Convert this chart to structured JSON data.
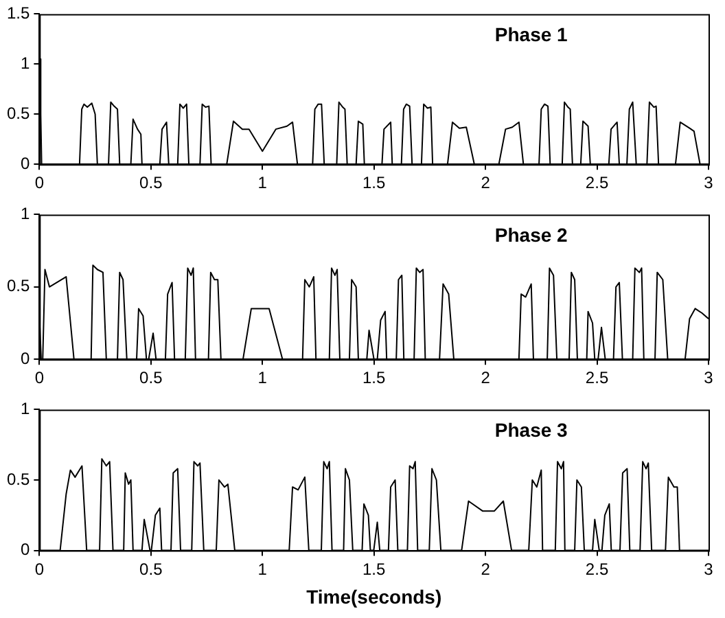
{
  "chart_data": [
    {
      "type": "line",
      "color": "#000000",
      "marker": "none",
      "grid": false,
      "legend": false,
      "annotations": [
        "Phase 1"
      ],
      "xlim": [
        0,
        3
      ],
      "xticks": [
        0,
        0.5,
        1,
        1.5,
        2,
        2.5,
        3
      ],
      "ylim": [
        0,
        1.5
      ],
      "yticks": [
        0,
        0.5,
        1,
        1.5
      ],
      "x": [
        0,
        0.003,
        0.006,
        0.01,
        0.18,
        0.19,
        0.2,
        0.215,
        0.235,
        0.25,
        0.26,
        0.31,
        0.32,
        0.335,
        0.35,
        0.36,
        0.41,
        0.42,
        0.44,
        0.455,
        0.46,
        0.54,
        0.55,
        0.57,
        0.58,
        0.62,
        0.63,
        0.645,
        0.66,
        0.67,
        0.72,
        0.73,
        0.745,
        0.76,
        0.77,
        0.84,
        0.87,
        0.91,
        0.94,
        1.0,
        1.06,
        1.11,
        1.135,
        1.157,
        1.225,
        1.235,
        1.25,
        1.265,
        1.277,
        1.333,
        1.343,
        1.36,
        1.37,
        1.38,
        1.42,
        1.43,
        1.45,
        1.457,
        1.536,
        1.545,
        1.575,
        1.582,
        1.623,
        1.633,
        1.645,
        1.66,
        1.671,
        1.713,
        1.723,
        1.74,
        1.755,
        1.763,
        1.83,
        1.852,
        1.883,
        1.914,
        1.95,
        2.06,
        2.09,
        2.12,
        2.15,
        2.17,
        2.24,
        2.25,
        2.265,
        2.28,
        2.29,
        2.344,
        2.354,
        2.37,
        2.38,
        2.39,
        2.427,
        2.437,
        2.46,
        2.47,
        2.553,
        2.563,
        2.59,
        2.6,
        2.634,
        2.645,
        2.66,
        2.676,
        2.724,
        2.735,
        2.755,
        2.765,
        2.776,
        2.852,
        2.873,
        2.915,
        2.935,
        2.962,
        3
      ],
      "values": [
        0,
        1.05,
        0.5,
        0,
        0,
        0.55,
        0.6,
        0.57,
        0.61,
        0.5,
        0,
        0,
        0.62,
        0.58,
        0.55,
        0,
        0,
        0.45,
        0.35,
        0.3,
        0,
        0,
        0.35,
        0.42,
        0,
        0,
        0.6,
        0.56,
        0.6,
        0,
        0,
        0.6,
        0.57,
        0.58,
        0,
        0,
        0.43,
        0.35,
        0.35,
        0.13,
        0.35,
        0.38,
        0.42,
        0,
        0,
        0.55,
        0.6,
        0.6,
        0,
        0,
        0.62,
        0.57,
        0.55,
        0,
        0,
        0.43,
        0.4,
        0,
        0,
        0.35,
        0.42,
        0,
        0,
        0.55,
        0.6,
        0.58,
        0,
        0,
        0.6,
        0.56,
        0.57,
        0,
        0,
        0.42,
        0.36,
        0.37,
        0,
        0,
        0.35,
        0.37,
        0.42,
        0,
        0,
        0.55,
        0.6,
        0.58,
        0,
        0,
        0.62,
        0.57,
        0.55,
        0,
        0,
        0.43,
        0.38,
        0,
        0,
        0.35,
        0.42,
        0,
        0,
        0.55,
        0.62,
        0,
        0,
        0.62,
        0.57,
        0.58,
        0,
        0,
        0.42,
        0.36,
        0.33,
        0,
        0
      ]
    },
    {
      "type": "line",
      "color": "#000000",
      "marker": "none",
      "grid": false,
      "legend": false,
      "annotations": [
        "Phase 2"
      ],
      "xlim": [
        0,
        3
      ],
      "xticks": [
        0,
        0.5,
        1,
        1.5,
        2,
        2.5,
        3
      ],
      "ylim": [
        0,
        1
      ],
      "yticks": [
        0,
        0.5,
        1
      ],
      "x": [
        0,
        0.008,
        0.015,
        0.025,
        0.045,
        0.12,
        0.155,
        0.232,
        0.24,
        0.26,
        0.285,
        0.3,
        0.35,
        0.36,
        0.375,
        0.392,
        0.436,
        0.445,
        0.465,
        0.48,
        0.49,
        0.51,
        0.523,
        0.565,
        0.575,
        0.595,
        0.606,
        0.654,
        0.665,
        0.68,
        0.69,
        0.7,
        0.758,
        0.768,
        0.785,
        0.8,
        0.814,
        0.913,
        0.95,
        1.03,
        1.09,
        1.18,
        1.19,
        1.21,
        1.23,
        1.24,
        1.3,
        1.31,
        1.325,
        1.335,
        1.347,
        1.39,
        1.4,
        1.42,
        1.43,
        1.468,
        1.478,
        1.5,
        1.515,
        1.53,
        1.55,
        1.557,
        1.6,
        1.61,
        1.625,
        1.634,
        1.68,
        1.69,
        1.705,
        1.72,
        1.73,
        1.794,
        1.81,
        1.835,
        1.858,
        2.15,
        2.16,
        2.18,
        2.205,
        2.215,
        2.277,
        2.287,
        2.305,
        2.32,
        2.375,
        2.385,
        2.4,
        2.412,
        2.454,
        2.46,
        2.48,
        2.49,
        2.505,
        2.52,
        2.537,
        2.574,
        2.585,
        2.6,
        2.614,
        2.66,
        2.67,
        2.69,
        2.7,
        2.71,
        2.76,
        2.77,
        2.795,
        2.817,
        2.895,
        2.915,
        2.94,
        2.97,
        3
      ],
      "values": [
        0.3,
        0,
        0,
        0.62,
        0.5,
        0.57,
        0,
        0,
        0.65,
        0.62,
        0.6,
        0,
        0,
        0.6,
        0.55,
        0,
        0,
        0.35,
        0.3,
        0,
        0,
        0.18,
        0,
        0,
        0.45,
        0.53,
        0,
        0,
        0.63,
        0.58,
        0.63,
        0,
        0,
        0.6,
        0.55,
        0.55,
        0,
        0,
        0.35,
        0.35,
        0,
        0,
        0.55,
        0.5,
        0.57,
        0,
        0,
        0.63,
        0.58,
        0.62,
        0,
        0,
        0.55,
        0.5,
        0,
        0,
        0.2,
        0,
        0,
        0.27,
        0.33,
        0,
        0,
        0.55,
        0.58,
        0,
        0,
        0.63,
        0.6,
        0.62,
        0,
        0,
        0.52,
        0.45,
        0,
        0,
        0.45,
        0.43,
        0.52,
        0,
        0,
        0.63,
        0.58,
        0,
        0,
        0.6,
        0.55,
        0,
        0,
        0.33,
        0.25,
        0,
        0,
        0.22,
        0,
        0,
        0.5,
        0.53,
        0,
        0,
        0.63,
        0.6,
        0.63,
        0,
        0,
        0.6,
        0.55,
        0,
        0,
        0.28,
        0.35,
        0.32,
        0.28
      ]
    },
    {
      "type": "line",
      "color": "#000000",
      "marker": "none",
      "grid": false,
      "legend": false,
      "annotations": [
        "Phase 3"
      ],
      "xlabel": "Time(seconds)",
      "xlim": [
        0,
        3
      ],
      "xticks": [
        0,
        0.5,
        1,
        1.5,
        2,
        2.5,
        3
      ],
      "ylim": [
        0,
        1
      ],
      "yticks": [
        0,
        0.5,
        1
      ],
      "x": [
        0,
        0.093,
        0.12,
        0.139,
        0.16,
        0.191,
        0.212,
        0.27,
        0.28,
        0.3,
        0.315,
        0.33,
        0.378,
        0.385,
        0.4,
        0.41,
        0.42,
        0.46,
        0.47,
        0.496,
        0.502,
        0.52,
        0.54,
        0.548,
        0.59,
        0.6,
        0.62,
        0.633,
        0.683,
        0.693,
        0.71,
        0.72,
        0.737,
        0.793,
        0.805,
        0.83,
        0.845,
        0.876,
        1.12,
        1.135,
        1.16,
        1.19,
        1.208,
        1.264,
        1.275,
        1.29,
        1.3,
        1.312,
        1.364,
        1.372,
        1.39,
        1.405,
        1.447,
        1.455,
        1.475,
        1.484,
        1.499,
        1.515,
        1.526,
        1.565,
        1.575,
        1.595,
        1.607,
        1.65,
        1.66,
        1.675,
        1.685,
        1.696,
        1.748,
        1.76,
        1.78,
        1.8,
        1.893,
        1.924,
        1.987,
        2.04,
        2.08,
        2.117,
        2.194,
        2.21,
        2.23,
        2.25,
        2.256,
        2.313,
        2.323,
        2.34,
        2.35,
        2.356,
        2.4,
        2.41,
        2.43,
        2.443,
        2.48,
        2.49,
        2.51,
        2.522,
        2.535,
        2.555,
        2.564,
        2.603,
        2.615,
        2.635,
        2.647,
        2.693,
        2.705,
        2.72,
        2.73,
        2.745,
        2.807,
        2.82,
        2.845,
        2.86,
        2.87,
        3
      ],
      "values": [
        0,
        0,
        0.4,
        0.57,
        0.52,
        0.6,
        0,
        0,
        0.65,
        0.6,
        0.63,
        0,
        0,
        0.55,
        0.47,
        0.5,
        0,
        0,
        0.22,
        0,
        0,
        0.25,
        0.3,
        0,
        0,
        0.55,
        0.58,
        0,
        0,
        0.63,
        0.6,
        0.62,
        0,
        0,
        0.5,
        0.45,
        0.47,
        0,
        0,
        0.45,
        0.43,
        0.52,
        0,
        0,
        0.63,
        0.58,
        0.63,
        0,
        0,
        0.58,
        0.5,
        0,
        0,
        0.33,
        0.25,
        0,
        0,
        0.2,
        0,
        0,
        0.45,
        0.5,
        0,
        0,
        0.6,
        0.58,
        0.63,
        0,
        0,
        0.58,
        0.5,
        0,
        0,
        0.35,
        0.28,
        0.28,
        0.35,
        0,
        0,
        0.5,
        0.45,
        0.57,
        0,
        0,
        0.63,
        0.58,
        0.63,
        0,
        0,
        0.5,
        0.45,
        0,
        0,
        0.22,
        0,
        0,
        0.25,
        0.33,
        0,
        0,
        0.55,
        0.58,
        0,
        0,
        0.63,
        0.58,
        0.62,
        0,
        0,
        0.52,
        0.45,
        0.45,
        0,
        0
      ]
    }
  ]
}
